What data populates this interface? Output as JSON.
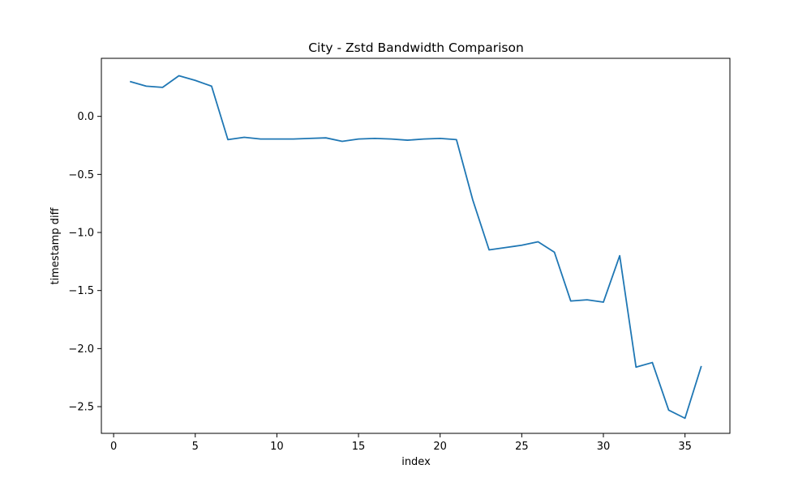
{
  "chart_data": {
    "type": "line",
    "title": "City - Zstd Bandwidth Comparison",
    "xlabel": "index",
    "ylabel": "timestamp diff",
    "xlim": [
      -0.75,
      37.75
    ],
    "ylim": [
      -2.73,
      0.5
    ],
    "xticks": [
      0,
      5,
      10,
      15,
      20,
      25,
      30,
      35
    ],
    "yticks": [
      0.0,
      -0.5,
      -1.0,
      -1.5,
      -2.0,
      -2.5
    ],
    "ytick_labels": [
      "0.0",
      "−0.5",
      "−1.0",
      "−1.5",
      "−2.0",
      "−2.5"
    ],
    "grid": false,
    "color": "#1f77b4",
    "series": [
      {
        "x": [
          1,
          2,
          3,
          4,
          5,
          6,
          7,
          8,
          9,
          10,
          11,
          12,
          13,
          14,
          15,
          16,
          17,
          18,
          19,
          20,
          21,
          22,
          23,
          24,
          25,
          26,
          27,
          28,
          29,
          30,
          31,
          32,
          33,
          34,
          35,
          36
        ],
        "y": [
          0.3,
          0.26,
          0.25,
          0.35,
          0.31,
          0.26,
          -0.2,
          -0.18,
          -0.195,
          -0.195,
          -0.195,
          -0.19,
          -0.185,
          -0.215,
          -0.195,
          -0.19,
          -0.195,
          -0.205,
          -0.195,
          -0.19,
          -0.2,
          -0.72,
          -1.15,
          -1.13,
          -1.11,
          -1.08,
          -1.17,
          -1.59,
          -1.58,
          -1.6,
          -1.2,
          -2.16,
          -2.12,
          -2.53,
          -2.6,
          -2.15
        ]
      }
    ]
  }
}
